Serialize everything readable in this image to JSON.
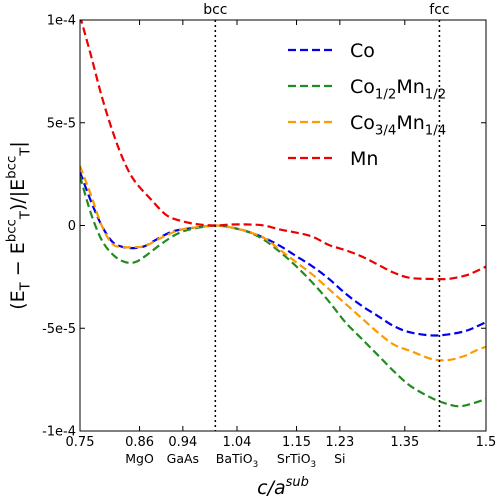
{
  "chart_data": {
    "type": "line",
    "xlabel_base": "c/a",
    "xlabel_sup": "sub",
    "ylabel_parts": [
      {
        "t": "(E",
        "s": "n"
      },
      {
        "t": "T",
        "s": "sub"
      },
      {
        "t": " − E",
        "s": "n"
      },
      {
        "t": "bcc",
        "s": "sup"
      },
      {
        "t": "T",
        "s": "sub"
      },
      {
        "t": ")/|E",
        "s": "n"
      },
      {
        "t": "bcc",
        "s": "sup"
      },
      {
        "t": "T",
        "s": "sub"
      },
      {
        "t": "|",
        "s": "n"
      }
    ],
    "xlim": [
      0.75,
      1.5
    ],
    "ylim": [
      -0.0001,
      0.0001
    ],
    "xticks": [
      0.75,
      0.86,
      0.94,
      1.04,
      1.15,
      1.23,
      1.35,
      1.5
    ],
    "xtick_labels": [
      "0.75",
      "0.86",
      "0.94",
      "1.04",
      "1.15",
      "1.23",
      "1.35",
      "1.5"
    ],
    "yticks": [
      -0.0001,
      -5e-05,
      0,
      5e-05,
      0.0001
    ],
    "ytick_labels": [
      "-1e-4",
      "-5e-5",
      "0",
      "5e-5",
      "1e-4"
    ],
    "substrates": [
      {
        "x": 0.86,
        "parts": [
          {
            "t": "MgO",
            "s": "n"
          }
        ]
      },
      {
        "x": 0.94,
        "parts": [
          {
            "t": "GaAs",
            "s": "n"
          }
        ]
      },
      {
        "x": 1.04,
        "parts": [
          {
            "t": "BaTiO",
            "s": "n"
          },
          {
            "t": "3",
            "s": "sub"
          }
        ]
      },
      {
        "x": 1.15,
        "parts": [
          {
            "t": "SrTiO",
            "s": "n"
          },
          {
            "t": "3",
            "s": "sub"
          }
        ]
      },
      {
        "x": 1.23,
        "parts": [
          {
            "t": "Si",
            "s": "n"
          }
        ]
      }
    ],
    "reference_lines": [
      {
        "x": 1.0,
        "label": "bcc"
      },
      {
        "x": 1.414,
        "label": "fcc"
      }
    ],
    "legend_position": "top-right",
    "grid": false,
    "series": [
      {
        "name_parts": [
          {
            "t": "Co",
            "s": "n"
          }
        ],
        "color": "#0000ee",
        "x": [
          0.75,
          0.77,
          0.79,
          0.81,
          0.83,
          0.85,
          0.87,
          0.89,
          0.92,
          0.95,
          1.0,
          1.03,
          1.06,
          1.09,
          1.12,
          1.15,
          1.18,
          1.21,
          1.24,
          1.27,
          1.3,
          1.33,
          1.36,
          1.4,
          1.43,
          1.46,
          1.48,
          1.5
        ],
        "y": [
          2.6e-05,
          1.2e-05,
          0,
          -8e-06,
          -1.05e-05,
          -1.1e-05,
          -1e-05,
          -7e-06,
          -3e-06,
          -1.5e-06,
          0,
          -1e-06,
          -3e-06,
          -6e-06,
          -1e-05,
          -1.5e-05,
          -2e-05,
          -2.6e-05,
          -3.3e-05,
          -3.9e-05,
          -4.4e-05,
          -4.9e-05,
          -5.2e-05,
          -5.35e-05,
          -5.3e-05,
          -5.15e-05,
          -4.95e-05,
          -4.7e-05
        ]
      },
      {
        "name_parts": [
          {
            "t": "Co",
            "s": "n"
          },
          {
            "t": "1/2",
            "s": "sub"
          },
          {
            "t": "Mn",
            "s": "n"
          },
          {
            "t": "1/2",
            "s": "sub"
          }
        ],
        "color": "#228b22",
        "x": [
          0.75,
          0.77,
          0.79,
          0.81,
          0.83,
          0.85,
          0.87,
          0.9,
          0.93,
          0.96,
          1.0,
          1.03,
          1.06,
          1.09,
          1.12,
          1.15,
          1.18,
          1.21,
          1.24,
          1.27,
          1.3,
          1.33,
          1.36,
          1.4,
          1.43,
          1.45,
          1.47,
          1.5
        ],
        "y": [
          2.4e-05,
          6e-06,
          -7e-06,
          -1.4e-05,
          -1.75e-05,
          -1.8e-05,
          -1.5e-05,
          -9e-06,
          -4e-06,
          -1.5e-06,
          0,
          -1e-06,
          -3e-06,
          -7e-06,
          -1.3e-05,
          -2e-05,
          -2.8e-05,
          -3.7e-05,
          -4.7e-05,
          -5.5e-05,
          -6.3e-05,
          -7.1e-05,
          -7.8e-05,
          -8.4e-05,
          -8.7e-05,
          -8.8e-05,
          -8.7e-05,
          -8.45e-05
        ]
      },
      {
        "name_parts": [
          {
            "t": "Co",
            "s": "n"
          },
          {
            "t": "3/4",
            "s": "sub"
          },
          {
            "t": "Mn",
            "s": "n"
          },
          {
            "t": "1/4",
            "s": "sub"
          }
        ],
        "color": "#ff9900",
        "x": [
          0.75,
          0.77,
          0.79,
          0.81,
          0.83,
          0.85,
          0.87,
          0.9,
          0.93,
          0.96,
          1.0,
          1.03,
          1.06,
          1.09,
          1.12,
          1.15,
          1.18,
          1.21,
          1.24,
          1.27,
          1.3,
          1.33,
          1.36,
          1.4,
          1.43,
          1.46,
          1.48,
          1.5
        ],
        "y": [
          2.9e-05,
          1.5e-05,
          0,
          -9e-06,
          -1.05e-05,
          -1.05e-05,
          -1e-05,
          -6e-06,
          -2.5e-06,
          -1e-06,
          0,
          -1e-06,
          -3e-06,
          -6e-06,
          -1.2e-05,
          -1.8e-05,
          -2.4e-05,
          -3.1e-05,
          -3.8e-05,
          -4.5e-05,
          -5.2e-05,
          -5.8e-05,
          -6.1e-05,
          -6.5e-05,
          -6.55e-05,
          -6.35e-05,
          -6.1e-05,
          -5.9e-05
        ]
      },
      {
        "name_parts": [
          {
            "t": "Mn",
            "s": "n"
          }
        ],
        "color": "#ee0000",
        "x": [
          0.75,
          0.77,
          0.79,
          0.81,
          0.83,
          0.85,
          0.88,
          0.91,
          0.94,
          0.97,
          1.0,
          1.03,
          1.06,
          1.09,
          1.12,
          1.15,
          1.18,
          1.21,
          1.24,
          1.27,
          1.3,
          1.33,
          1.36,
          1.4,
          1.43,
          1.46,
          1.48,
          1.5
        ],
        "y": [
          0.000102,
          8.3e-05,
          6.3e-05,
          4.6e-05,
          3.2e-05,
          2.2e-05,
          1.3e-05,
          5e-06,
          2e-06,
          5e-07,
          0,
          5e-07,
          5e-07,
          0,
          -2e-06,
          -3.5e-06,
          -5.5e-06,
          -9.5e-06,
          -1.2e-05,
          -1.5e-05,
          -1.9e-05,
          -2.3e-05,
          -2.55e-05,
          -2.6e-05,
          -2.6e-05,
          -2.45e-05,
          -2.25e-05,
          -2e-05
        ]
      }
    ]
  }
}
